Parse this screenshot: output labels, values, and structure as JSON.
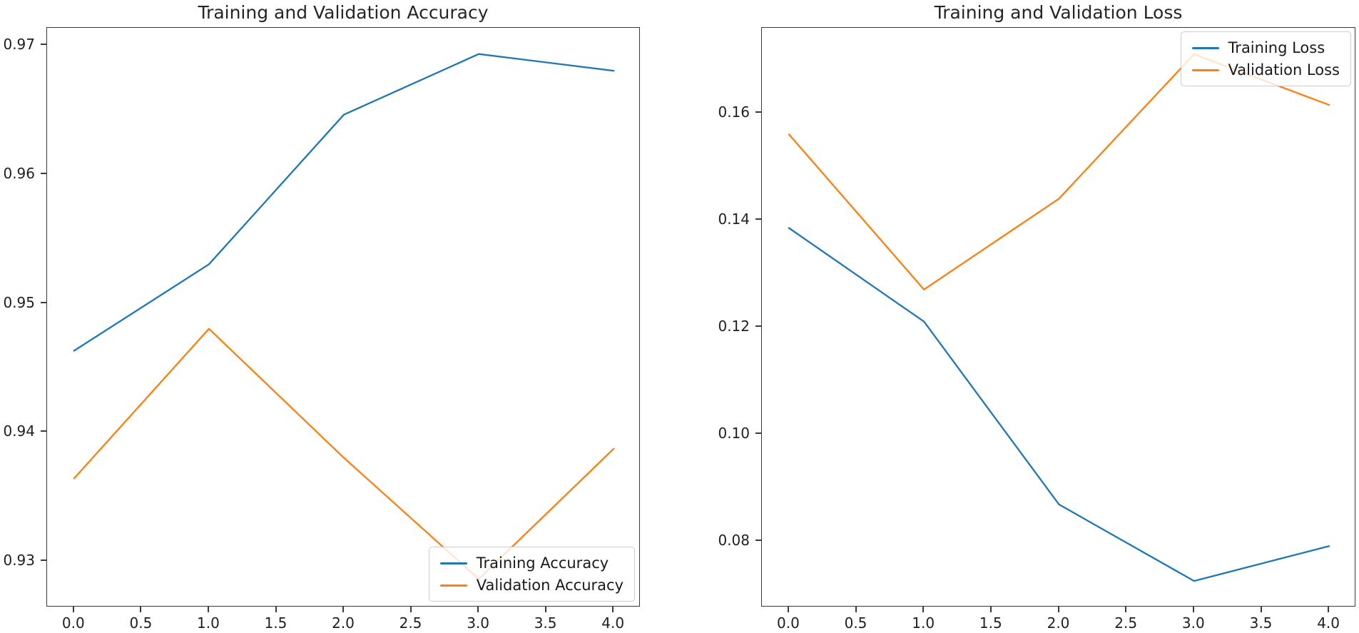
{
  "page": {
    "background": "#ffffff"
  },
  "colors": {
    "training_line": "#1f77b4",
    "validation_line": "#ff7f0e",
    "spine": "#3a3a3a",
    "text": "#262626"
  },
  "chart_data": [
    {
      "type": "line",
      "title": "Training and Validation Accuracy",
      "x": [
        0,
        1,
        2,
        3,
        4
      ],
      "series": [
        {
          "name": "Training Accuracy",
          "color": "#1f77b4",
          "values": [
            0.9463,
            0.953,
            0.9646,
            0.9693,
            0.968
          ]
        },
        {
          "name": "Validation Accuracy",
          "color": "#ff7f0e",
          "values": [
            0.9364,
            0.948,
            0.938,
            0.9286,
            0.9387
          ]
        }
      ],
      "xlim": [
        -0.2,
        4.2
      ],
      "ylim": [
        0.92641,
        0.97133
      ],
      "xtick_values": [
        0.0,
        0.5,
        1.0,
        1.5,
        2.0,
        2.5,
        3.0,
        3.5,
        4.0
      ],
      "xtick_labels": [
        "0.0",
        "0.5",
        "1.0",
        "1.5",
        "2.0",
        "2.5",
        "3.0",
        "3.5",
        "4.0"
      ],
      "ytick_values": [
        0.93,
        0.94,
        0.95,
        0.96,
        0.97
      ],
      "ytick_labels": [
        "0.93",
        "0.94",
        "0.95",
        "0.96",
        "0.97"
      ],
      "xlabel": "",
      "ylabel": "",
      "grid": false,
      "legend": {
        "position": "lower right",
        "entries": [
          "Training Accuracy",
          "Validation Accuracy"
        ]
      }
    },
    {
      "type": "line",
      "title": "Training and Validation Loss",
      "x": [
        0,
        1,
        2,
        3,
        4
      ],
      "series": [
        {
          "name": "Training Loss",
          "color": "#1f77b4",
          "values": [
            0.1385,
            0.121,
            0.0868,
            0.0725,
            0.079
          ]
        },
        {
          "name": "Validation Loss",
          "color": "#ff7f0e",
          "values": [
            0.156,
            0.127,
            0.144,
            0.171,
            0.1615
          ]
        }
      ],
      "xlim": [
        -0.2,
        4.2
      ],
      "ylim": [
        0.06757,
        0.17593
      ],
      "xtick_values": [
        0.0,
        0.5,
        1.0,
        1.5,
        2.0,
        2.5,
        3.0,
        3.5,
        4.0
      ],
      "xtick_labels": [
        "0.0",
        "0.5",
        "1.0",
        "1.5",
        "2.0",
        "2.5",
        "3.0",
        "3.5",
        "4.0"
      ],
      "ytick_values": [
        0.08,
        0.1,
        0.12,
        0.14,
        0.16
      ],
      "ytick_labels": [
        "0.08",
        "0.10",
        "0.12",
        "0.14",
        "0.16"
      ],
      "xlabel": "",
      "ylabel": "",
      "grid": false,
      "legend": {
        "position": "upper right",
        "entries": [
          "Training Loss",
          "Validation Loss"
        ]
      }
    }
  ]
}
